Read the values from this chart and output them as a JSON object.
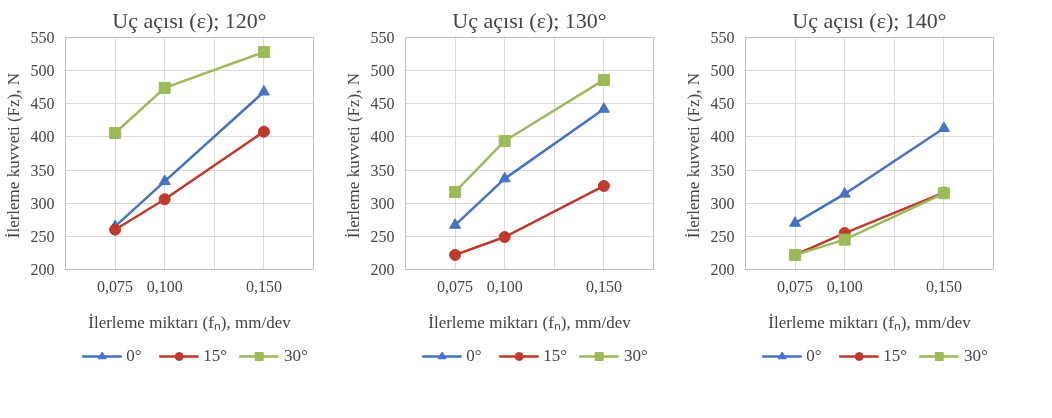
{
  "chart_data": [
    {
      "type": "line",
      "title": "Uç açısı (ε); 120°",
      "xlabel": "İlerleme miktarı (fₙ), mm/dev",
      "ylabel": "İlerleme kuvveti  (Fz), N",
      "x": [
        0.075,
        0.1,
        0.15
      ],
      "xlim": [
        0.05,
        0.175
      ],
      "xticks": [
        {
          "value": 0.075,
          "label": "0,075"
        },
        {
          "value": 0.1,
          "label": "0,100"
        },
        {
          "value": 0.125,
          "label": null
        },
        {
          "value": 0.15,
          "label": "0,150"
        }
      ],
      "ylim": [
        200,
        550
      ],
      "yticks": [
        200,
        250,
        300,
        350,
        400,
        450,
        500,
        550
      ],
      "grid": true,
      "legend": "bottom",
      "series": [
        {
          "name": "0°",
          "color": "#4472c4",
          "marker": "triangle",
          "values": [
            265,
            333,
            468
          ]
        },
        {
          "name": "15°",
          "color": "#c0392b",
          "marker": "circle",
          "values": [
            260,
            306,
            408
          ]
        },
        {
          "name": "30°",
          "color": "#9bbb59",
          "marker": "square",
          "values": [
            406,
            474,
            528
          ]
        }
      ]
    },
    {
      "type": "line",
      "title": "Uç açısı (ε); 130°",
      "xlabel": "İlerleme miktarı (fₙ), mm/dev",
      "ylabel": "İlerleme kuvveti  (Fz), N",
      "x": [
        0.075,
        0.1,
        0.15
      ],
      "xlim": [
        0.05,
        0.175
      ],
      "xticks": [
        {
          "value": 0.075,
          "label": "0,075"
        },
        {
          "value": 0.1,
          "label": "0,100"
        },
        {
          "value": 0.125,
          "label": null
        },
        {
          "value": 0.15,
          "label": "0,150"
        }
      ],
      "ylim": [
        200,
        550
      ],
      "yticks": [
        200,
        250,
        300,
        350,
        400,
        450,
        500,
        550
      ],
      "grid": true,
      "legend": "bottom",
      "series": [
        {
          "name": "0°",
          "color": "#4472c4",
          "marker": "triangle",
          "values": [
            267,
            337,
            442
          ]
        },
        {
          "name": "15°",
          "color": "#c0392b",
          "marker": "circle",
          "values": [
            222,
            249,
            326
          ]
        },
        {
          "name": "30°",
          "color": "#9bbb59",
          "marker": "square",
          "values": [
            317,
            394,
            486
          ]
        }
      ]
    },
    {
      "type": "line",
      "title": "Uç açısı (ε); 140°",
      "xlabel": "İlerleme miktarı (fₙ), mm/dev",
      "ylabel": "İlerleme kuvveti  (Fz), N",
      "x": [
        0.075,
        0.1,
        0.15
      ],
      "xlim": [
        0.05,
        0.175
      ],
      "xticks": [
        {
          "value": 0.075,
          "label": "0,075"
        },
        {
          "value": 0.1,
          "label": "0,100"
        },
        {
          "value": 0.125,
          "label": null
        },
        {
          "value": 0.15,
          "label": "0,150"
        }
      ],
      "ylim": [
        200,
        550
      ],
      "yticks": [
        200,
        250,
        300,
        350,
        400,
        450,
        500,
        550
      ],
      "grid": true,
      "legend": "bottom",
      "series": [
        {
          "name": "0°",
          "color": "#4472c4",
          "marker": "triangle",
          "values": [
            270,
            314,
            413
          ]
        },
        {
          "name": "15°",
          "color": "#c0392b",
          "marker": "circle",
          "values": [
            222,
            255,
            316
          ]
        },
        {
          "name": "30°",
          "color": "#9bbb59",
          "marker": "square",
          "values": [
            222,
            245,
            315
          ]
        }
      ]
    }
  ]
}
